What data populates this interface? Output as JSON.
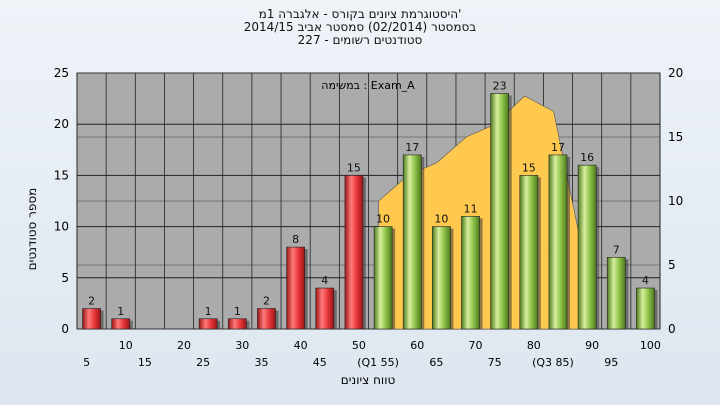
{
  "title_lines": [
    "היסטוגרמת ציונים בקורס - אלגברה 1מ'",
    "בסמסטר  (02/2014)  סמסטר אביב 2014/15",
    "סטודנטים רשומים - 227"
  ],
  "chart_data": {
    "type": "bar",
    "xlabel": "טווח ציונים",
    "ylabel": "מספר סטודנטים",
    "annotation": "במשימה : Exam_A",
    "ylim": [
      0,
      25
    ],
    "yticks": [
      0,
      5,
      10,
      15,
      20,
      25
    ],
    "y2lim": [
      0,
      20
    ],
    "y2ticks": [
      0,
      5,
      10,
      15,
      20
    ],
    "grid": true,
    "categories": [
      "5",
      "10",
      "15",
      "20",
      "25",
      "30",
      "35",
      "40",
      "45",
      "50",
      "55",
      "60",
      "65",
      "70",
      "75",
      "80",
      "85",
      "90",
      "95",
      "100"
    ],
    "x_tick_labels": [
      "5",
      "10",
      "15",
      "20",
      "25",
      "30",
      "35",
      "40",
      "45",
      "50",
      "(Q1 55)",
      "60",
      "65",
      "70",
      "75",
      "80",
      "(Q3 85)",
      "90",
      "95",
      "100"
    ],
    "values": [
      2,
      1,
      0,
      0,
      1,
      1,
      2,
      8,
      4,
      15,
      10,
      17,
      10,
      11,
      23,
      15,
      17,
      16,
      7,
      4
    ],
    "value_labels": [
      "2",
      "1",
      "",
      "",
      "1",
      "1",
      "2",
      "8",
      "4",
      "15",
      "10",
      "17",
      "10",
      "11",
      "23",
      "15",
      "17",
      "16",
      "7",
      "4"
    ],
    "bar_colors": [
      "red",
      "red",
      "red",
      "red",
      "red",
      "red",
      "red",
      "red",
      "red",
      "red",
      "green",
      "green",
      "green",
      "green",
      "green",
      "green",
      "green",
      "green",
      "green",
      "green"
    ],
    "area_series": {
      "x": [
        "55",
        "60",
        "65",
        "70",
        "75",
        "80",
        "85",
        "90"
      ],
      "values": [
        10,
        12,
        13,
        15,
        16,
        18.2,
        17,
        6
      ],
      "axis": "right"
    },
    "colors": {
      "red_top": "#ff7a7a",
      "red_mid": "#e8383b",
      "red_bot": "#9c1515",
      "green_top": "#d8ef9e",
      "green_mid": "#8fc34a",
      "green_bot": "#4d7a1d",
      "area": "#ffc84e",
      "plot_bg": "#ababab"
    }
  }
}
